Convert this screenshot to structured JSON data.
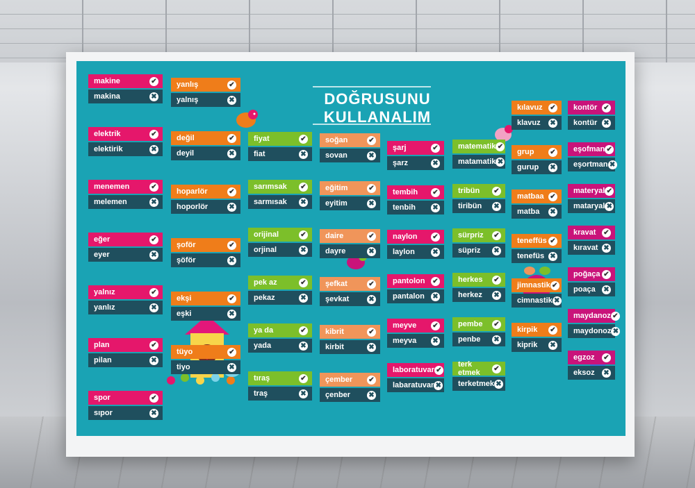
{
  "title": "DOĞRUSUNU  KULLANALIM",
  "icons": {
    "correct": "✔",
    "wrong": "✖"
  },
  "colors": {
    "pink": "#e5176b",
    "orange": "#ef7d1a",
    "green": "#7cbf2a",
    "lightorange": "#f0955a",
    "magenta": "#c9137a",
    "dark": "#1f4f5e",
    "board": "#1aa3b4"
  },
  "columns": [
    {
      "color": "pink",
      "cards": [
        {
          "correct": "makine",
          "wrong": "makina"
        },
        {
          "correct": "elektrik",
          "wrong": "elektirik"
        },
        {
          "correct": "menemen",
          "wrong": "melemen"
        },
        {
          "correct": "eğer",
          "wrong": "eyer"
        },
        {
          "correct": "yalnız",
          "wrong": "yanlız"
        },
        {
          "correct": "plan",
          "wrong": "pilan"
        },
        {
          "correct": "spor",
          "wrong": "sıpor"
        }
      ]
    },
    {
      "color": "orange",
      "cards": [
        {
          "correct": "yanlış",
          "wrong": "yalnış"
        },
        {
          "correct": "değil",
          "wrong": "deyil"
        },
        {
          "correct": "hoparlör",
          "wrong": "hoporlör"
        },
        {
          "correct": "şoför",
          "wrong": "şöför"
        },
        {
          "correct": "ekşi",
          "wrong": "eşki"
        },
        {
          "correct": "tüyo",
          "wrong": "tiyo"
        }
      ]
    },
    {
      "color": "green",
      "cards": [
        {
          "correct": "fiyat",
          "wrong": "fiat"
        },
        {
          "correct": "sarımsak",
          "wrong": "sarmısak"
        },
        {
          "correct": "orijinal",
          "wrong": "orjinal"
        },
        {
          "correct": "pek az",
          "wrong": "pekaz"
        },
        {
          "correct": "ya da",
          "wrong": "yada"
        },
        {
          "correct": "tıraş",
          "wrong": "traş"
        }
      ]
    },
    {
      "color": "lightorange",
      "cards": [
        {
          "correct": "soğan",
          "wrong": "sovan"
        },
        {
          "correct": "eğitim",
          "wrong": "eyitim"
        },
        {
          "correct": "daire",
          "wrong": "dayre"
        },
        {
          "correct": "şefkat",
          "wrong": "şevkat"
        },
        {
          "correct": "kibrit",
          "wrong": "kirbit"
        },
        {
          "correct": "çember",
          "wrong": "çenber"
        }
      ]
    },
    {
      "color": "pink",
      "cards": [
        {
          "correct": "şarj",
          "wrong": "şarz"
        },
        {
          "correct": "tembih",
          "wrong": "tenbih"
        },
        {
          "correct": "naylon",
          "wrong": "laylon"
        },
        {
          "correct": "pantolon",
          "wrong": "pantalon"
        },
        {
          "correct": "meyve",
          "wrong": "meyva"
        },
        {
          "correct": "laboratuvar",
          "wrong": "labaratuvar"
        }
      ]
    },
    {
      "color": "green",
      "cards": [
        {
          "correct": "matematik",
          "wrong": "matamatik"
        },
        {
          "correct": "tribün",
          "wrong": "tiribün"
        },
        {
          "correct": "sürpriz",
          "wrong": "süpriz"
        },
        {
          "correct": "herkes",
          "wrong": "herkez"
        },
        {
          "correct": "pembe",
          "wrong": "penbe"
        },
        {
          "correct": "terk etmek",
          "wrong": "terketmek"
        }
      ]
    },
    {
      "color": "orange",
      "cards": [
        {
          "correct": "kılavuz",
          "wrong": "klavuz"
        },
        {
          "correct": "grup",
          "wrong": "gurup"
        },
        {
          "correct": "matbaa",
          "wrong": "matba"
        },
        {
          "correct": "teneffüs",
          "wrong": "tenefüs"
        },
        {
          "correct": "jimnastik",
          "wrong": "cimnastik"
        },
        {
          "correct": "kirpik",
          "wrong": "kiprik"
        }
      ]
    },
    {
      "color": "magenta",
      "cards": [
        {
          "correct": "kontör",
          "wrong": "kontür"
        },
        {
          "correct": "eşofman",
          "wrong": "eşortman"
        },
        {
          "correct": "materyal",
          "wrong": "mataryal"
        },
        {
          "correct": "kravat",
          "wrong": "kıravat"
        },
        {
          "correct": "poğaça",
          "wrong": "poaça"
        },
        {
          "correct": "maydanoz",
          "wrong": "maydonoz"
        },
        {
          "correct": "egzoz",
          "wrong": "eksoz"
        }
      ]
    }
  ]
}
